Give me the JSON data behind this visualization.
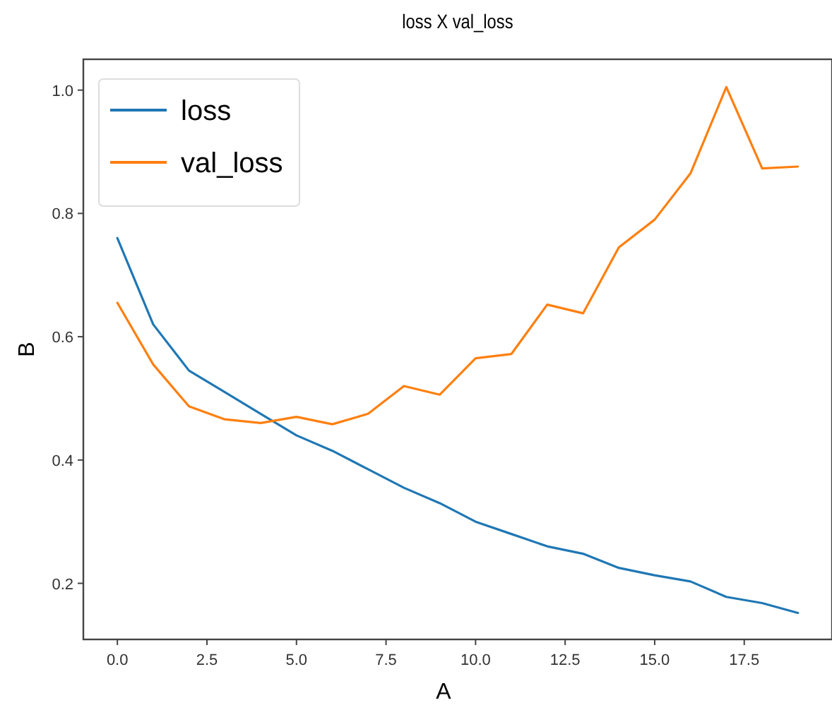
{
  "chart_data": {
    "type": "line",
    "title": "loss X val_loss",
    "xlabel": "A",
    "ylabel": "B",
    "x": [
      0,
      1,
      2,
      3,
      4,
      5,
      6,
      7,
      8,
      9,
      10,
      11,
      12,
      13,
      14,
      15,
      16,
      17,
      18,
      19
    ],
    "series": [
      {
        "name": "loss",
        "color": "#1f77b4",
        "values": [
          0.76,
          0.62,
          0.545,
          0.51,
          0.475,
          0.44,
          0.415,
          0.385,
          0.355,
          0.33,
          0.3,
          0.28,
          0.26,
          0.248,
          0.225,
          0.213,
          0.203,
          0.178,
          0.168,
          0.152
        ]
      },
      {
        "name": "val_loss",
        "color": "#ff7f0e",
        "values": [
          0.655,
          0.555,
          0.487,
          0.466,
          0.46,
          0.47,
          0.458,
          0.475,
          0.52,
          0.506,
          0.565,
          0.572,
          0.652,
          0.638,
          0.745,
          0.79,
          0.865,
          1.005,
          0.873,
          0.876
        ]
      }
    ],
    "xlim": [
      -0.95,
      19.95
    ],
    "ylim": [
      0.109,
      1.05
    ],
    "xticks": [
      {
        "value": 0,
        "label": "0.0"
      },
      {
        "value": 2.5,
        "label": "2.5"
      },
      {
        "value": 5,
        "label": "5.0"
      },
      {
        "value": 7.5,
        "label": "7.5"
      },
      {
        "value": 10,
        "label": "10.0"
      },
      {
        "value": 12.5,
        "label": "12.5"
      },
      {
        "value": 15,
        "label": "15.0"
      },
      {
        "value": 17.5,
        "label": "17.5"
      }
    ],
    "yticks": [
      {
        "value": 0.2,
        "label": "0.2"
      },
      {
        "value": 0.4,
        "label": "0.4"
      },
      {
        "value": 0.6,
        "label": "0.6"
      },
      {
        "value": 0.8,
        "label": "0.8"
      },
      {
        "value": 1.0,
        "label": "1.0"
      }
    ],
    "grid": false,
    "legend": "top left",
    "marker": "none",
    "line_style": "solid"
  }
}
